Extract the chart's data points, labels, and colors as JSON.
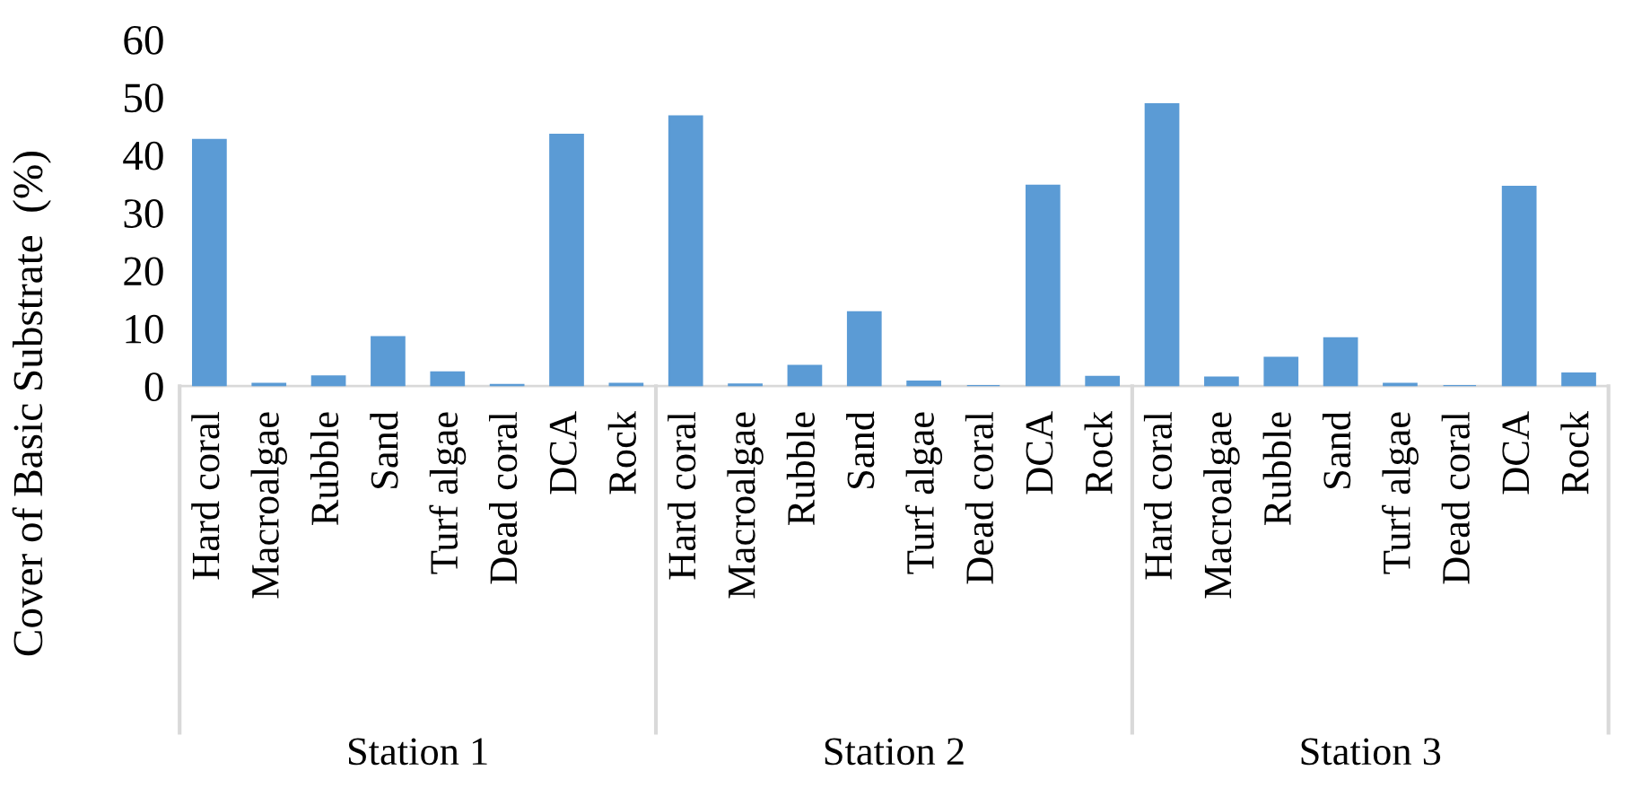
{
  "chart_data": {
    "type": "bar",
    "ylabel": "Cover of Basic Substrate  (%)",
    "categories": [
      "Hard coral",
      "Macroalgae",
      "Rubble",
      "Sand",
      "Turf algae",
      "Dead coral",
      "DCA",
      "Rock",
      "Hard coral",
      "Macroalgae",
      "Rubble",
      "Sand",
      "Turf algae",
      "Dead coral",
      "DCA",
      "Rock",
      "Hard coral",
      "Macroalgae",
      "Rubble",
      "Sand",
      "Turf algae",
      "Dead coral",
      "DCA",
      "Rock"
    ],
    "values": [
      42.6,
      0.4,
      1.7,
      8.5,
      2.4,
      0.2,
      43.5,
      0.4,
      46.7,
      0.3,
      3.5,
      12.8,
      0.8,
      0,
      34.7,
      1.6,
      48.8,
      1.5,
      4.9,
      8.3,
      0.4,
      0,
      34.5,
      2.2
    ],
    "color": "#5b9bd5",
    "annotations": [
      "Station 1",
      "Station 2",
      "Station 3"
    ],
    "ylim": [
      0,
      60
    ],
    "yticks": [
      0,
      10,
      20,
      30,
      40,
      50,
      60
    ],
    "grid": false,
    "legend": false
  }
}
